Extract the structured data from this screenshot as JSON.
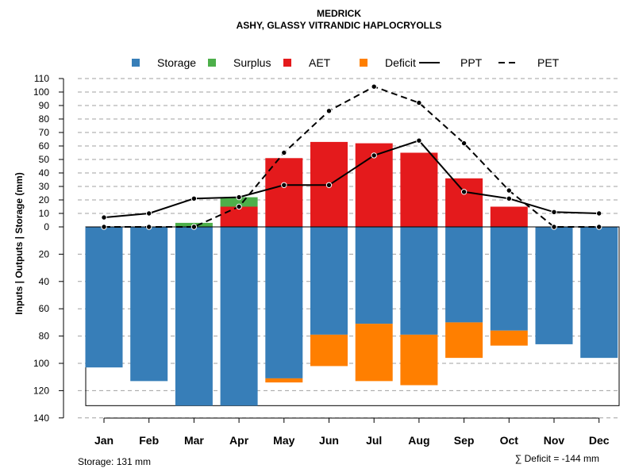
{
  "chart_data": {
    "type": "bar",
    "title": "MEDRICK",
    "subtitle": "ASHY, GLASSY VITRANDIC HAPLOCRYOLLS",
    "ylabel": "Inputs | Outputs | Storage    (mm)",
    "categories": [
      "Jan",
      "Feb",
      "Mar",
      "Apr",
      "May",
      "Jun",
      "Jul",
      "Aug",
      "Sep",
      "Oct",
      "Nov",
      "Dec"
    ],
    "upper_axis": {
      "range": [
        0,
        110
      ],
      "ticks": [
        "0",
        "10",
        "20",
        "30",
        "40",
        "50",
        "60",
        "70",
        "80",
        "90",
        "100",
        "110"
      ]
    },
    "lower_axis": {
      "range": [
        0,
        140
      ],
      "ticks": [
        "20",
        "40",
        "60",
        "80",
        "100",
        "120",
        "140"
      ]
    },
    "storage_capacity": 131,
    "legend": [
      {
        "label": "Storage",
        "kind": "box",
        "color": "#377eb8"
      },
      {
        "label": "Surplus",
        "kind": "box",
        "color": "#4daf4a"
      },
      {
        "label": "AET",
        "kind": "box",
        "color": "#e41a1c"
      },
      {
        "label": "Deficit",
        "kind": "box",
        "color": "#ff7f00"
      },
      {
        "label": "PPT",
        "kind": "solid"
      },
      {
        "label": "PET",
        "kind": "dashed"
      }
    ],
    "series": [
      {
        "name": "AET",
        "values": [
          0,
          0,
          0,
          15,
          51,
          63,
          62,
          55,
          36,
          15,
          0,
          0
        ]
      },
      {
        "name": "Surplus",
        "values": [
          0,
          0,
          3,
          7,
          0,
          0,
          0,
          0,
          0,
          0,
          0,
          0
        ]
      },
      {
        "name": "Storage",
        "values": [
          103,
          113,
          131,
          131,
          111,
          79,
          71,
          79,
          70,
          76,
          86,
          96
        ]
      },
      {
        "name": "Deficit",
        "values": [
          0,
          0,
          0,
          0,
          3,
          23,
          42,
          37,
          26,
          11,
          0,
          0
        ]
      },
      {
        "name": "PPT",
        "values": [
          7,
          10,
          21,
          22,
          31,
          31,
          53,
          64,
          26,
          21,
          11,
          10
        ]
      },
      {
        "name": "PET",
        "values": [
          0,
          0,
          0,
          15,
          55,
          86,
          104,
          92,
          62,
          27,
          0,
          0
        ]
      }
    ],
    "footer_left": "Storage: 131 mm",
    "footer_right": "∑ Deficit = -144 mm"
  }
}
